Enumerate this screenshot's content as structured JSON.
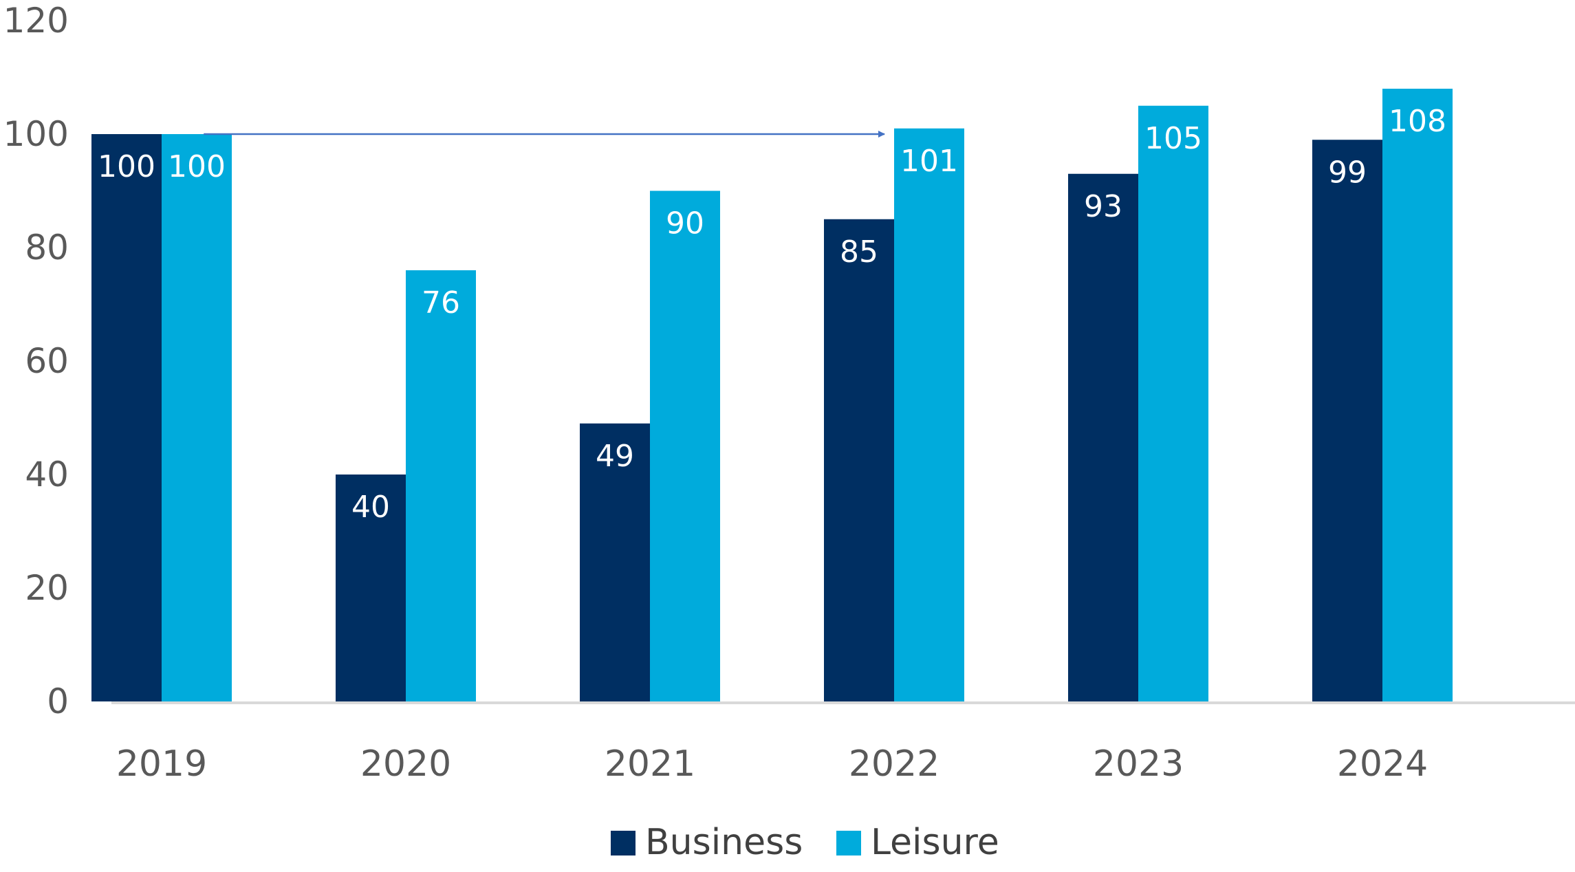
{
  "chart_data": {
    "type": "bar",
    "title": "",
    "xlabel": "",
    "ylabel": "",
    "categories": [
      "2019",
      "2020",
      "2021",
      "2022",
      "2023",
      "2024"
    ],
    "series": [
      {
        "name": "Business",
        "color": "#002f62",
        "values": [
          100,
          40,
          49,
          85,
          93,
          99
        ]
      },
      {
        "name": "Leisure",
        "color": "#00abdc",
        "values": [
          100,
          76,
          90,
          101,
          105,
          108
        ]
      }
    ],
    "ylim": [
      0,
      120
    ],
    "yticks": [
      0,
      20,
      40,
      60,
      80,
      100,
      120
    ],
    "grid": false,
    "legend": "bottom-center",
    "annotation": {
      "type": "arrow",
      "from": {
        "category": "2019",
        "series": "Leisure",
        "y": 100
      },
      "to": {
        "category": "2022",
        "series": "Leisure",
        "y": 100
      },
      "color": "#4472c4"
    }
  }
}
